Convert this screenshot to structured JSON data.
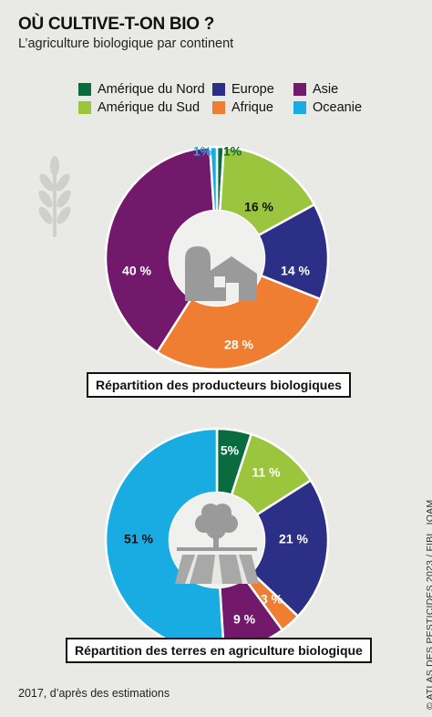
{
  "title": "OÙ CULTIVE-T-ON BIO ?",
  "subtitle": "L’agriculture biologique par continent",
  "legend": [
    {
      "label": "Amérique du Nord",
      "color": "#0a6b3f"
    },
    {
      "label": "Europe",
      "color": "#2b2f85"
    },
    {
      "label": "Asie",
      "color": "#72196b"
    },
    {
      "label": "Amérique du Sud",
      "color": "#9bc53d"
    },
    {
      "label": "Afrique",
      "color": "#ef7d32"
    },
    {
      "label": "Oceanie",
      "color": "#19ace3"
    }
  ],
  "chart_data": [
    {
      "type": "pie",
      "title": "Répartition des producteurs biologiques",
      "icon": "farm-icon",
      "series": [
        {
          "name": "Amérique du Nord",
          "value": 1,
          "label": "1%",
          "color": "#0a6b3f"
        },
        {
          "name": "Amérique du Sud",
          "value": 16,
          "label": "16 %",
          "color": "#9bc53d"
        },
        {
          "name": "Europe",
          "value": 14,
          "label": "14 %",
          "color": "#2b2f85"
        },
        {
          "name": "Afrique",
          "value": 28,
          "label": "28 %",
          "color": "#ef7d32"
        },
        {
          "name": "Asie",
          "value": 40,
          "label": "40 %",
          "color": "#72196b"
        },
        {
          "name": "Oceanie",
          "value": 1,
          "label": "1%",
          "color": "#19ace3"
        }
      ]
    },
    {
      "type": "pie",
      "title": "Répartition des terres en agriculture biologique",
      "icon": "tree-field-icon",
      "series": [
        {
          "name": "Amérique du Nord",
          "value": 5,
          "label": "5%",
          "color": "#0a6b3f"
        },
        {
          "name": "Amérique du Sud",
          "value": 11,
          "label": "11 %",
          "color": "#9bc53d"
        },
        {
          "name": "Europe",
          "value": 21,
          "label": "21 %",
          "color": "#2b2f85"
        },
        {
          "name": "Afrique",
          "value": 3,
          "label": "3 %",
          "color": "#ef7d32"
        },
        {
          "name": "Asie",
          "value": 9,
          "label": "9 %",
          "color": "#72196b"
        },
        {
          "name": "Oceanie",
          "value": 51,
          "label": "51 %",
          "color": "#19ace3"
        }
      ]
    }
  ],
  "footer": "2017, d’après des estimations",
  "credit": "© ATLAS DES PESTICIDES 2023 / FIBL, IOAM"
}
